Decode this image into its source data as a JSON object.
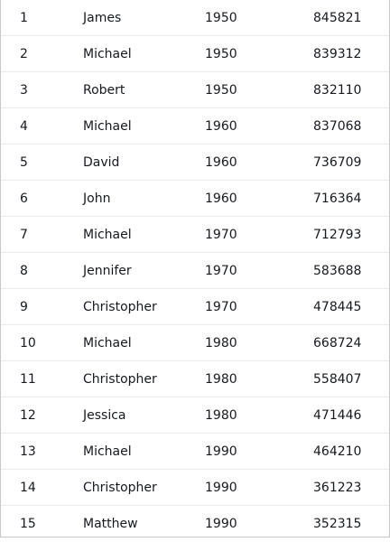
{
  "rows": [
    {
      "rank": "1",
      "name": "James",
      "year": "1950",
      "count": "845821"
    },
    {
      "rank": "2",
      "name": "Michael",
      "year": "1950",
      "count": "839312"
    },
    {
      "rank": "3",
      "name": "Robert",
      "year": "1950",
      "count": "832110"
    },
    {
      "rank": "4",
      "name": "Michael",
      "year": "1960",
      "count": "837068"
    },
    {
      "rank": "5",
      "name": "David",
      "year": "1960",
      "count": "736709"
    },
    {
      "rank": "6",
      "name": "John",
      "year": "1960",
      "count": "716364"
    },
    {
      "rank": "7",
      "name": "Michael",
      "year": "1970",
      "count": "712793"
    },
    {
      "rank": "8",
      "name": "Jennifer",
      "year": "1970",
      "count": "583688"
    },
    {
      "rank": "9",
      "name": "Christopher",
      "year": "1970",
      "count": "478445"
    },
    {
      "rank": "10",
      "name": "Michael",
      "year": "1980",
      "count": "668724"
    },
    {
      "rank": "11",
      "name": "Christopher",
      "year": "1980",
      "count": "558407"
    },
    {
      "rank": "12",
      "name": "Jessica",
      "year": "1980",
      "count": "471446"
    },
    {
      "rank": "13",
      "name": "Michael",
      "year": "1990",
      "count": "464210"
    },
    {
      "rank": "14",
      "name": "Christopher",
      "year": "1990",
      "count": "361223"
    },
    {
      "rank": "15",
      "name": "Matthew",
      "year": "1990",
      "count": "352315"
    }
  ]
}
